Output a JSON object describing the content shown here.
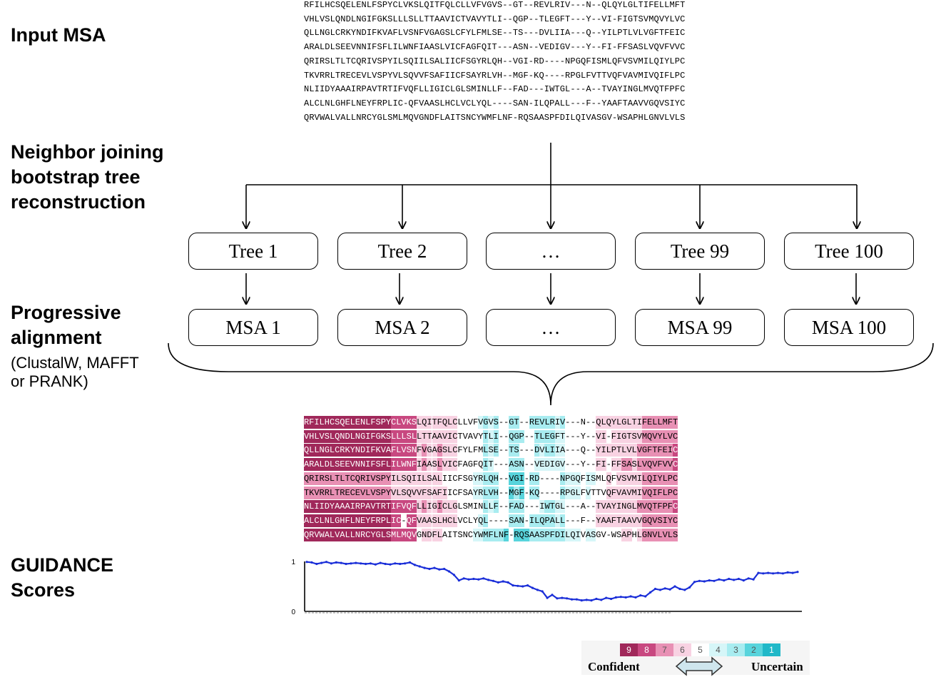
{
  "steps": {
    "input": "Input MSA",
    "tree": "Neighbor joining\nbootstrap tree\nreconstruction",
    "progressive": "Progressive\nalignment",
    "progressive_note": "(ClustalW, MAFFT\nor PRANK)",
    "guidance": "GUIDANCE\nScores"
  },
  "msa_rows": [
    "RFILHCSQELENLFSPYCLVKSLQITFQLCLLVFVGVS--GT--REVLRIV---N--QLQYLGLTIFELLMFT",
    "VHLVSLQNDLNGIFGKSLLLSLLTTAAVICTVAVYTLI--QGP--TLEGFT---Y--VI-FIGTSVMQVYLVC",
    "QLLNGLCRKYNDIFKVAFLVSNFVGAGSLCFYLFMLSE--TS---DVLIIA---Q--YILPTLVLVGFTFEIC",
    "ARALDLSEEVNNIFSFLILWNFIAASLVICFAGFQIT---ASN--VEDIGV---Y--FI-FFSASLVQVFVVC",
    "QRIRSLTLTCQRIVSPYILSQIILSALIICFSGYRLQH--VGI-RD----NPGQFISMLQFVSVMILQIYLPC",
    "TKVRRLTRECEVLVSPYVLSQVVFSAFIICFSAYRLVH--MGF-KQ----RPGLFVTTVQFVAVMIVQIFLPC",
    "NLIIDYAAAIRPAVTRTIFVQFLLIGICLGLSMINLLF--FAD---IWTGL---A--TVAYINGLMVQTFPFC",
    "ALCLNLGHFLNEYFRPLIC-QFVAASLHCLVCLYQL----SAN-ILQPALL---F--YAAFTAAVVGQVSIYC",
    "QRVWALVALLNRCYGLSMLMQVGNDFLAITSNCYWMFLNF-RQSAASPFDILQIVASGV-WSAPHLGNVLVLS"
  ],
  "trees": [
    "Tree 1",
    "Tree 2",
    "…",
    "Tree 99",
    "Tree 100"
  ],
  "msas": [
    "MSA 1",
    "MSA 2",
    "…",
    "MSA 99",
    "MSA 100"
  ],
  "colors": {
    "9": "#a0285a",
    "8": "#c84880",
    "7": "#e890b4",
    "6": "#f8d2e2",
    "5": "#ffffff",
    "4": "#d6f6f8",
    "3": "#a8ecf0",
    "2": "#58d4dc",
    "1": "#20b8c8",
    "line": "#1a2ed8"
  },
  "chart_data": {
    "type": "line",
    "title": "",
    "xlabel": "",
    "ylabel": "",
    "ylim": [
      0,
      1
    ],
    "yticks": [
      "0",
      "1"
    ],
    "series": [
      {
        "values": [
          0.99,
          0.98,
          0.95,
          0.97,
          0.99,
          0.96,
          0.98,
          0.97,
          0.95,
          0.96,
          0.97,
          0.96,
          0.95,
          0.96,
          0.94,
          0.97,
          0.95,
          0.94,
          0.96,
          0.95,
          0.96,
          0.98,
          0.93,
          0.9,
          0.87,
          0.85,
          0.87,
          0.84,
          0.85,
          0.8,
          0.73,
          0.62,
          0.66,
          0.64,
          0.65,
          0.64,
          0.66,
          0.63,
          0.61,
          0.58,
          0.6,
          0.58,
          0.52,
          0.51,
          0.5,
          0.52,
          0.47,
          0.43,
          0.4,
          0.27,
          0.33,
          0.26,
          0.27,
          0.26,
          0.24,
          0.24,
          0.22,
          0.23,
          0.22,
          0.25,
          0.23,
          0.27,
          0.25,
          0.28,
          0.29,
          0.28,
          0.3,
          0.28,
          0.32,
          0.3,
          0.38,
          0.45,
          0.43,
          0.46,
          0.44,
          0.5,
          0.45,
          0.43,
          0.48,
          0.59,
          0.61,
          0.6,
          0.62,
          0.61,
          0.64,
          0.62,
          0.65,
          0.63,
          0.65,
          0.62,
          0.66,
          0.64,
          0.77,
          0.76,
          0.77,
          0.76,
          0.77,
          0.76,
          0.78,
          0.77,
          0.79
        ]
      }
    ]
  },
  "legend": {
    "levels": [
      "9",
      "8",
      "7",
      "6",
      "5",
      "4",
      "3",
      "2",
      "1"
    ],
    "confident": "Confident",
    "uncertain": "Uncertain"
  }
}
